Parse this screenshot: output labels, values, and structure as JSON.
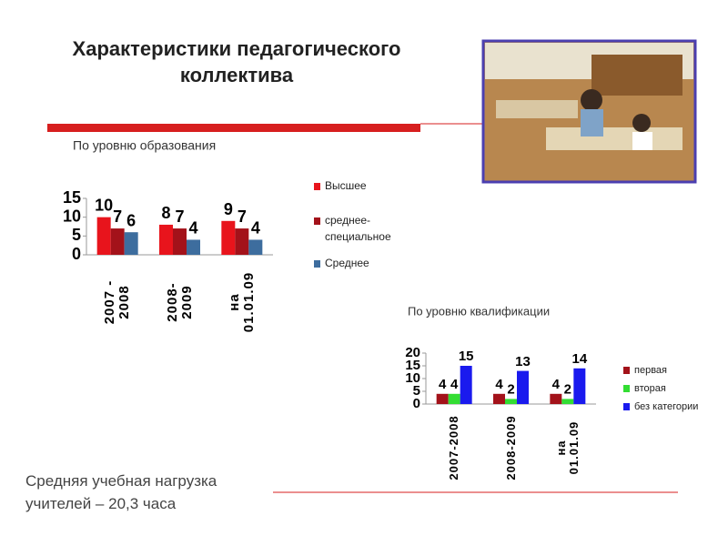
{
  "slide": {
    "title": "Характеристики педагогического коллектива",
    "footer": "Средняя учебная нагрузка учителей – 20,3 часа"
  },
  "chart_data": [
    {
      "type": "bar",
      "title": "По уровню образования",
      "categories": [
        "2007 - 2008",
        "2008-2009",
        "на 01.01.09"
      ],
      "series": [
        {
          "name": "Высшее",
          "color": "#e8141c",
          "values": [
            10,
            8,
            9
          ]
        },
        {
          "name": "среднее-специальное",
          "color": "#a3121a",
          "values": [
            7,
            7,
            7
          ]
        },
        {
          "name": "Среднее",
          "color": "#3d6d9e",
          "values": [
            6,
            4,
            4
          ]
        }
      ],
      "ylim": [
        0,
        15
      ],
      "yticks": [
        0,
        5,
        10,
        15
      ]
    },
    {
      "type": "bar",
      "title": "По уровню квалификации",
      "categories": [
        "2007-2008",
        "2008-2009",
        "на 01.01.09"
      ],
      "series": [
        {
          "name": "первая",
          "color": "#a3121a",
          "values": [
            4,
            4,
            4
          ]
        },
        {
          "name": "вторая",
          "color": "#33dd33",
          "values": [
            4,
            2,
            2
          ]
        },
        {
          "name": "без категории",
          "color": "#1a1aee",
          "values": [
            15,
            13,
            14
          ]
        }
      ],
      "ylim": [
        0,
        20
      ],
      "yticks": [
        0,
        5,
        10,
        15,
        20
      ]
    }
  ]
}
